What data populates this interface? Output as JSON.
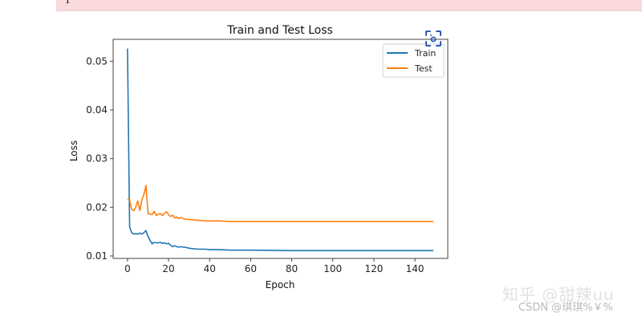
{
  "banner": {
    "text": "I",
    "color": "#fadadb"
  },
  "watermarks": {
    "zhihu": "知乎 @甜辣uu",
    "csdn": "CSDN @琪琪%￥%"
  },
  "icons": {
    "screenshot": "screenshot-scan-icon"
  },
  "chart_data": {
    "type": "line",
    "title": "Train and Test Loss",
    "xlabel": "Epoch",
    "ylabel": "Loss",
    "xlim": [
      -7,
      156
    ],
    "ylim": [
      0.0095,
      0.0545
    ],
    "xticks": [
      0,
      20,
      40,
      60,
      80,
      100,
      120,
      140
    ],
    "xtick_labels": [
      "0",
      "20",
      "40",
      "60",
      "80",
      "100",
      "120",
      "140"
    ],
    "yticks": [
      0.01,
      0.02,
      0.03,
      0.04,
      0.05
    ],
    "ytick_labels": [
      "0.01",
      "0.02",
      "0.03",
      "0.04",
      "0.05"
    ],
    "grid": false,
    "legend": {
      "position": "upper right",
      "entries": [
        "Train",
        "Test"
      ]
    },
    "series": [
      {
        "name": "Train",
        "color": "#1f77b4",
        "x": [
          0,
          1,
          2,
          3,
          4,
          5,
          6,
          7,
          8,
          9,
          10,
          11,
          12,
          13,
          14,
          15,
          16,
          17,
          18,
          19,
          20,
          21,
          22,
          23,
          24,
          25,
          26,
          27,
          28,
          30,
          32,
          35,
          38,
          40,
          45,
          50,
          60,
          80,
          100,
          120,
          140,
          149
        ],
        "values": [
          0.0526,
          0.016,
          0.0148,
          0.0145,
          0.0146,
          0.0145,
          0.0147,
          0.0145,
          0.0148,
          0.0152,
          0.014,
          0.0132,
          0.0125,
          0.0128,
          0.0127,
          0.0127,
          0.0128,
          0.0126,
          0.0127,
          0.0125,
          0.0126,
          0.0122,
          0.0119,
          0.0121,
          0.0119,
          0.0118,
          0.0119,
          0.0118,
          0.0118,
          0.0116,
          0.0115,
          0.0114,
          0.0114,
          0.0113,
          0.0113,
          0.0112,
          0.0112,
          0.0111,
          0.0111,
          0.0111,
          0.0111,
          0.0111
        ]
      },
      {
        "name": "Test",
        "color": "#ff7f0e",
        "x": [
          0,
          1,
          2,
          3,
          4,
          5,
          6,
          7,
          8,
          9,
          10,
          11,
          12,
          13,
          14,
          15,
          16,
          17,
          18,
          19,
          20,
          21,
          22,
          23,
          24,
          25,
          26,
          27,
          28,
          30,
          32,
          35,
          38,
          40,
          45,
          50,
          60,
          80,
          100,
          120,
          140,
          149
        ],
        "values": [
          0.0217,
          0.0215,
          0.0196,
          0.0193,
          0.02,
          0.0213,
          0.0193,
          0.0215,
          0.0227,
          0.0245,
          0.0187,
          0.0186,
          0.0185,
          0.0192,
          0.0183,
          0.0186,
          0.0187,
          0.0183,
          0.0188,
          0.0191,
          0.0185,
          0.0181,
          0.0184,
          0.0178,
          0.018,
          0.0177,
          0.0179,
          0.0177,
          0.0176,
          0.0175,
          0.0174,
          0.0173,
          0.0172,
          0.0172,
          0.0172,
          0.0171,
          0.0171,
          0.0171,
          0.0171,
          0.0171,
          0.0171,
          0.0171
        ]
      }
    ]
  }
}
